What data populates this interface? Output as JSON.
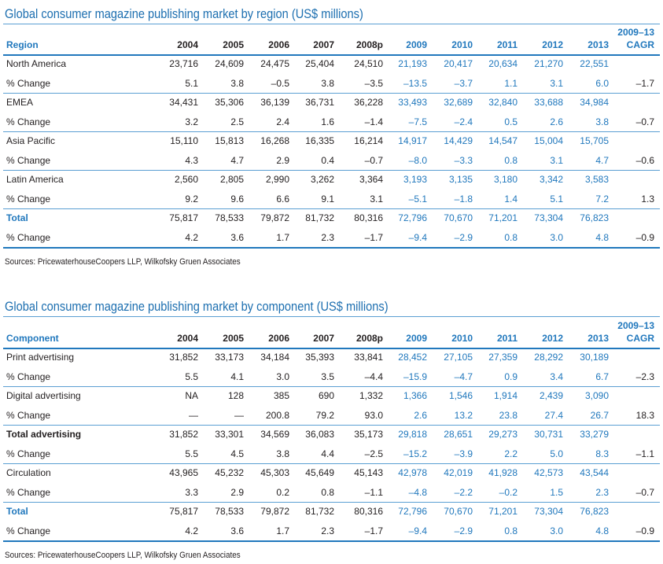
{
  "tables": [
    {
      "title": "Global consumer magazine publishing market by region (US$ millions)",
      "header": [
        "Region",
        "2004",
        "2005",
        "2006",
        "2007",
        "2008p",
        "2009",
        "2010",
        "2011",
        "2012",
        "2013"
      ],
      "header_cagr": [
        "2009–13",
        "CAGR"
      ],
      "rows": [
        [
          "North America",
          "23,716",
          "24,609",
          "24,475",
          "25,404",
          "24,510",
          "21,193",
          "20,417",
          "20,634",
          "21,270",
          "22,551"
        ],
        [
          "% Change",
          "5.1",
          "3.8",
          "–0.5",
          "3.8",
          "–3.5",
          "–13.5",
          "–3.7",
          "1.1",
          "3.1",
          "6.0",
          "–1.7"
        ],
        [
          "EMEA",
          "34,431",
          "35,306",
          "36,139",
          "36,731",
          "36,228",
          "33,493",
          "32,689",
          "32,840",
          "33,688",
          "34,984"
        ],
        [
          "% Change",
          "3.2",
          "2.5",
          "2.4",
          "1.6",
          "–1.4",
          "–7.5",
          "–2.4",
          "0.5",
          "2.6",
          "3.8",
          "–0.7"
        ],
        [
          "Asia Pacific",
          "15,110",
          "15,813",
          "16,268",
          "16,335",
          "16,214",
          "14,917",
          "14,429",
          "14,547",
          "15,004",
          "15,705"
        ],
        [
          "% Change",
          "4.3",
          "4.7",
          "2.9",
          "0.4",
          "–0.7",
          "–8.0",
          "–3.3",
          "0.8",
          "3.1",
          "4.7",
          "–0.6"
        ],
        [
          "Latin America",
          "2,560",
          "2,805",
          "2,990",
          "3,262",
          "3,364",
          "3,193",
          "3,135",
          "3,180",
          "3,342",
          "3,583"
        ],
        [
          "% Change",
          "9.2",
          "9.6",
          "6.6",
          "9.1",
          "3.1",
          "–5.1",
          "–1.8",
          "1.4",
          "5.1",
          "7.2",
          "1.3"
        ],
        [
          "Total",
          "75,817",
          "78,533",
          "79,872",
          "81,732",
          "80,316",
          "72,796",
          "70,670",
          "71,201",
          "73,304",
          "76,823"
        ],
        [
          "% Change",
          "4.2",
          "3.6",
          "1.7",
          "2.3",
          "–1.7",
          "–9.4",
          "–2.9",
          "0.8",
          "3.0",
          "4.8",
          "–0.9"
        ]
      ],
      "source": "Sources: PricewaterhouseCoopers LLP, Wilkofsky Gruen Associates"
    },
    {
      "title": "Global consumer magazine publishing market by component (US$ millions)",
      "header": [
        "Component",
        "2004",
        "2005",
        "2006",
        "2007",
        "2008p",
        "2009",
        "2010",
        "2011",
        "2012",
        "2013"
      ],
      "header_cagr": [
        "2009–13",
        "CAGR"
      ],
      "rows": [
        [
          "Print advertising",
          "31,852",
          "33,173",
          "34,184",
          "35,393",
          "33,841",
          "28,452",
          "27,105",
          "27,359",
          "28,292",
          "30,189"
        ],
        [
          "% Change",
          "5.5",
          "4.1",
          "3.0",
          "3.5",
          "–4.4",
          "–15.9",
          "–4.7",
          "0.9",
          "3.4",
          "6.7",
          "–2.3"
        ],
        [
          "Digital advertising",
          "NA",
          "128",
          "385",
          "690",
          "1,332",
          "1,366",
          "1,546",
          "1,914",
          "2,439",
          "3,090"
        ],
        [
          "% Change",
          "—",
          "—",
          "200.8",
          "79.2",
          "93.0",
          "2.6",
          "13.2",
          "23.8",
          "27.4",
          "26.7",
          "18.3"
        ],
        [
          "Total advertising",
          "31,852",
          "33,301",
          "34,569",
          "36,083",
          "35,173",
          "29,818",
          "28,651",
          "29,273",
          "30,731",
          "33,279"
        ],
        [
          "% Change",
          "5.5",
          "4.5",
          "3.8",
          "4.4",
          "–2.5",
          "–15.2",
          "–3.9",
          "2.2",
          "5.0",
          "8.3",
          "–1.1"
        ],
        [
          "Circulation",
          "43,965",
          "45,232",
          "45,303",
          "45,649",
          "45,143",
          "42,978",
          "42,019",
          "41,928",
          "42,573",
          "43,544"
        ],
        [
          "% Change",
          "3.3",
          "2.9",
          "0.2",
          "0.8",
          "–1.1",
          "–4.8",
          "–2.2",
          "–0.2",
          "1.5",
          "2.3",
          "–0.7"
        ],
        [
          "Total",
          "75,817",
          "78,533",
          "79,872",
          "81,732",
          "80,316",
          "72,796",
          "70,670",
          "71,201",
          "73,304",
          "76,823"
        ],
        [
          "% Change",
          "4.2",
          "3.6",
          "1.7",
          "2.3",
          "–1.7",
          "–9.4",
          "–2.9",
          "0.8",
          "3.0",
          "4.8",
          "–0.9"
        ]
      ],
      "source": "Sources: PricewaterhouseCoopers LLP, Wilkofsky Gruen Associates"
    }
  ]
}
